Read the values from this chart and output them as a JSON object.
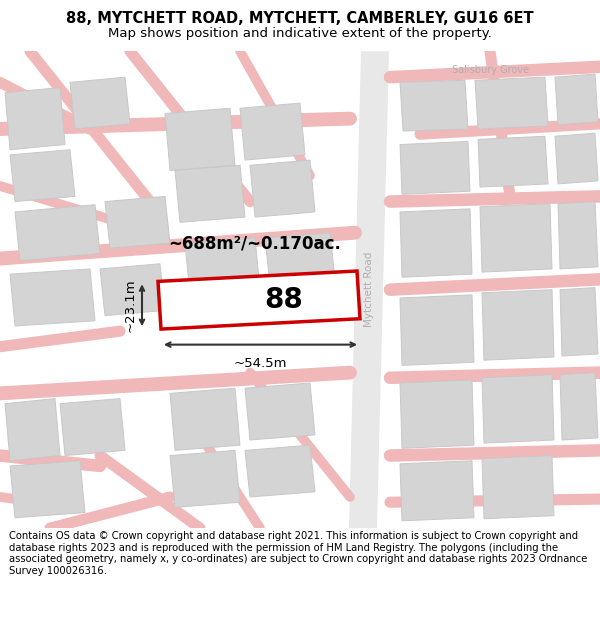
{
  "title": "88, MYTCHETT ROAD, MYTCHETT, CAMBERLEY, GU16 6ET",
  "subtitle": "Map shows position and indicative extent of the property.",
  "footer": "Contains OS data © Crown copyright and database right 2021. This information is subject to Crown copyright and database rights 2023 and is reproduced with the permission of HM Land Registry. The polygons (including the associated geometry, namely x, y co-ordinates) are subject to Crown copyright and database rights 2023 Ordnance Survey 100026316.",
  "bg_color": "#ffffff",
  "map_bg": "#f5eeee",
  "road_color": "#f0b8b8",
  "building_color": "#d4d4d4",
  "building_edge": "#c8c8c8",
  "road_area_color": "#e8e8e8",
  "road_label_color": "#b0b0b0",
  "highlight_color": "#cc0000",
  "highlight_fill": "#ffffff",
  "dim_color": "#333333",
  "area_text": "~688m²/~0.170ac.",
  "label_88": "88",
  "dim_width": "~54.5m",
  "dim_height": "~23.1m",
  "road_name": "Mytchett Road",
  "street_name2": "Salisbury Grove",
  "title_fontsize": 10.5,
  "subtitle_fontsize": 9.5,
  "footer_fontsize": 7.2
}
